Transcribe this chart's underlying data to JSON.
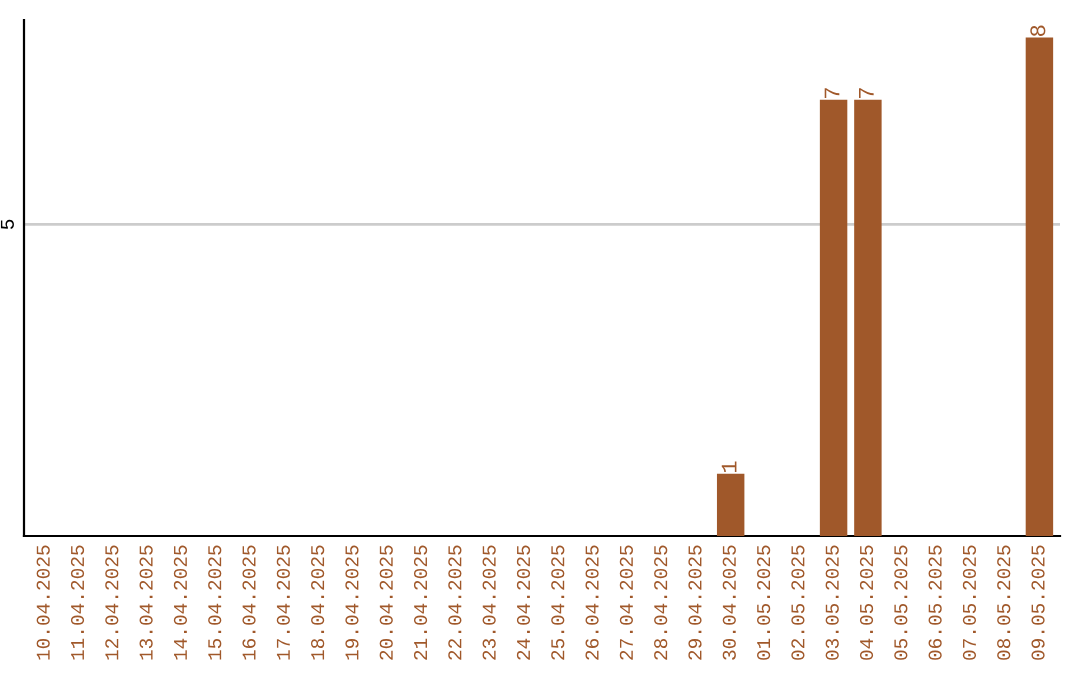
{
  "chart_data": {
    "type": "bar",
    "categories": [
      "10.04.2025",
      "11.04.2025",
      "12.04.2025",
      "13.04.2025",
      "14.04.2025",
      "15.04.2025",
      "16.04.2025",
      "17.04.2025",
      "18.04.2025",
      "19.04.2025",
      "20.04.2025",
      "21.04.2025",
      "22.04.2025",
      "23.04.2025",
      "24.04.2025",
      "25.04.2025",
      "26.04.2025",
      "27.04.2025",
      "28.04.2025",
      "29.04.2025",
      "30.04.2025",
      "01.05.2025",
      "02.05.2025",
      "03.05.2025",
      "04.05.2025",
      "05.05.2025",
      "06.05.2025",
      "07.05.2025",
      "08.05.2025",
      "09.05.2025"
    ],
    "values": [
      null,
      null,
      null,
      null,
      null,
      null,
      null,
      null,
      null,
      null,
      null,
      null,
      null,
      null,
      null,
      null,
      null,
      null,
      null,
      null,
      1,
      null,
      null,
      7,
      7,
      null,
      null,
      null,
      null,
      8
    ],
    "data_labels": true,
    "color": "#a0582a",
    "ref_lines": [
      {
        "axis": "y",
        "value": 5,
        "label": "5",
        "color": "#cccccc"
      }
    ]
  }
}
